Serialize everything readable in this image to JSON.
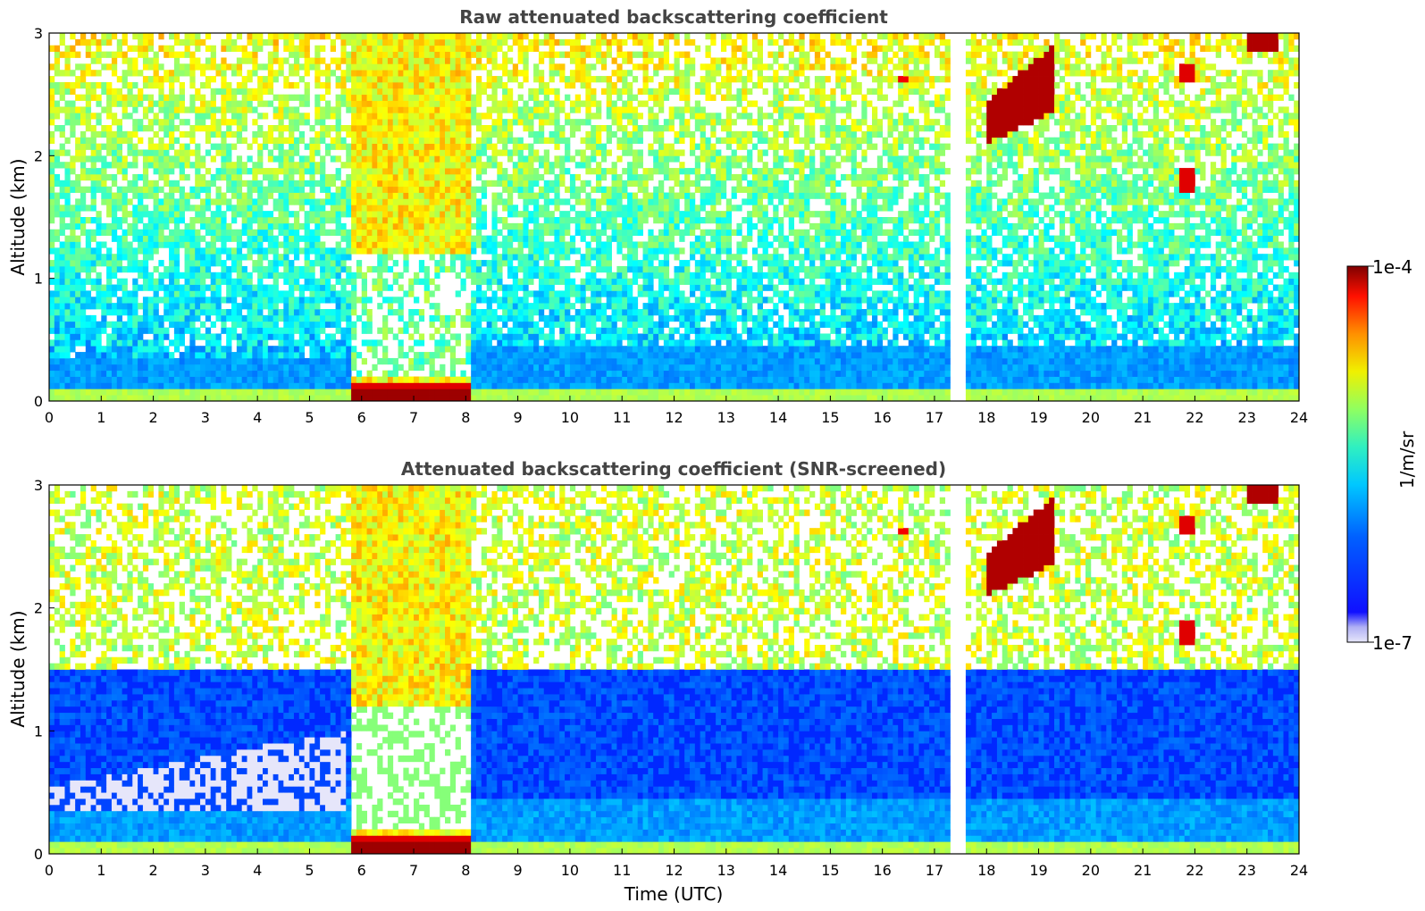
{
  "chart_data": [
    {
      "type": "heatmap",
      "title": "Raw attenuated backscattering coefficient",
      "xlabel": "",
      "ylabel": "Altitude (km)",
      "xlim": [
        0,
        24
      ],
      "ylim": [
        0,
        3
      ],
      "xticks": [
        0,
        1,
        2,
        3,
        4,
        5,
        6,
        7,
        8,
        9,
        10,
        11,
        12,
        13,
        14,
        15,
        16,
        17,
        18,
        19,
        20,
        21,
        22,
        23,
        24
      ],
      "yticks": [
        0,
        1,
        2,
        3
      ],
      "screened": false,
      "features": [
        {
          "label": "boundary layer aerosol",
          "x_range": [
            0,
            5.7
          ],
          "y_range": [
            0,
            0.35
          ]
        },
        {
          "label": "low cloud / fog layer",
          "x_range": [
            5.8,
            8.1
          ],
          "y_range": [
            0.05,
            0.12
          ]
        },
        {
          "label": "data gap",
          "x_range": [
            17.3,
            17.6
          ],
          "y_range": [
            0,
            3
          ]
        },
        {
          "label": "high clouds",
          "x_range": [
            18,
            19.3
          ],
          "y_range": [
            2.1,
            3
          ]
        },
        {
          "label": "high clouds",
          "x_range": [
            21.5,
            22
          ],
          "y_range": [
            1.7,
            2.8
          ]
        }
      ]
    },
    {
      "type": "heatmap",
      "title": "Attenuated backscattering coefficient (SNR-screened)",
      "xlabel": "Time (UTC)",
      "ylabel": "Altitude (km)",
      "xlim": [
        0,
        24
      ],
      "ylim": [
        0,
        3
      ],
      "xticks": [
        0,
        1,
        2,
        3,
        4,
        5,
        6,
        7,
        8,
        9,
        10,
        11,
        12,
        13,
        14,
        15,
        16,
        17,
        18,
        19,
        20,
        21,
        22,
        23,
        24
      ],
      "yticks": [
        0,
        1,
        2,
        3
      ],
      "screened": true,
      "features": [
        {
          "label": "boundary layer aerosol",
          "x_range": [
            0,
            5.7
          ],
          "y_range": [
            0,
            1.0
          ]
        },
        {
          "label": "low cloud / fog layer",
          "x_range": [
            5.8,
            8.1
          ],
          "y_range": [
            0,
            0.12
          ]
        },
        {
          "label": "data gap",
          "x_range": [
            17.3,
            17.6
          ],
          "y_range": [
            0,
            3
          ]
        },
        {
          "label": "high clouds",
          "x_range": [
            18,
            19.3
          ],
          "y_range": [
            2.0,
            3
          ]
        },
        {
          "label": "high clouds",
          "x_range": [
            21.5,
            22
          ],
          "y_range": [
            1.7,
            2.8
          ]
        }
      ]
    }
  ],
  "colorbar": {
    "label": "1/m/sr",
    "min_label": "1e-7",
    "max_label": "1e-4",
    "min": 1e-07,
    "max": 0.0001,
    "scale": "log",
    "colormap": "jet",
    "colors": [
      "#e6e6fa",
      "#0000ff",
      "#00a0ff",
      "#00e0e0",
      "#60ff90",
      "#e0ff20",
      "#ffc000",
      "#ff4000",
      "#8b0000"
    ]
  }
}
